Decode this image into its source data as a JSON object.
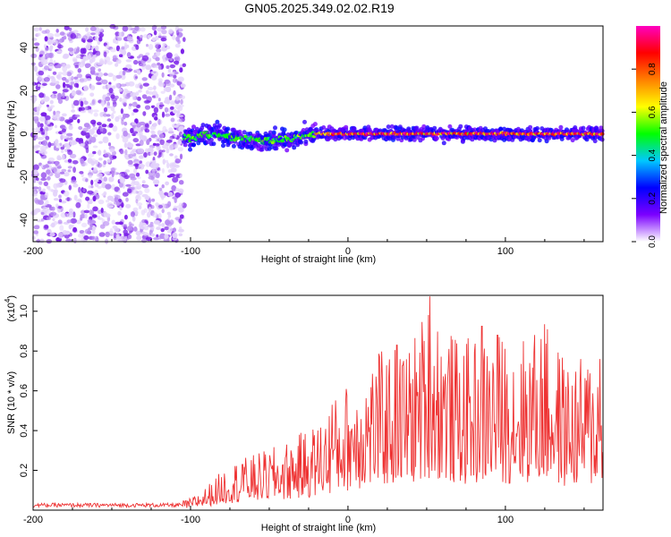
{
  "title": "GN05.2025.349.02.02.R19",
  "chart_data": [
    {
      "type": "heatmap",
      "name": "spectrogram",
      "xlabel": "Height of straight line (km)",
      "ylabel": "Frequency (Hz)",
      "xlim": [
        -200,
        162
      ],
      "ylim": [
        -50,
        50
      ],
      "xticks": [
        -200,
        -100,
        0,
        100
      ],
      "yticks": [
        -40,
        -20,
        0,
        20,
        40
      ],
      "noise_region_x": [
        -200,
        -104
      ],
      "signal_band_x": [
        -104,
        162
      ],
      "signal_center_hz": [
        {
          "x": -104,
          "y": -2
        },
        {
          "x": -95,
          "y": -1
        },
        {
          "x": -85,
          "y": 0
        },
        {
          "x": -70,
          "y": -2
        },
        {
          "x": -55,
          "y": -3
        },
        {
          "x": -45,
          "y": -3
        },
        {
          "x": -35,
          "y": -2
        },
        {
          "x": -20,
          "y": 0
        },
        {
          "x": 0,
          "y": 0
        },
        {
          "x": 50,
          "y": 0
        },
        {
          "x": 100,
          "y": 0
        },
        {
          "x": 162,
          "y": 0
        }
      ],
      "colorbar": {
        "label": "Normalized spectral amplitude",
        "range": [
          0.0,
          1.0
        ],
        "ticks": [
          0.0,
          0.2,
          0.4,
          0.6,
          0.8
        ],
        "tick_labels": [
          "0.0",
          "0.2",
          "0.4",
          "0.6",
          "0.8"
        ],
        "colors_low_to_high": [
          "#ffffff",
          "#7b00ff",
          "#0000ff",
          "#00c8ff",
          "#00ff00",
          "#ffff00",
          "#ff8000",
          "#ff0000",
          "#ff00c0"
        ]
      }
    },
    {
      "type": "line",
      "name": "snr",
      "xlabel": "Height of straight line (km)",
      "ylabel": "SNR (10 * v/v)",
      "scale_label": "(x10",
      "scale_exponent": "4",
      "xlim": [
        -200,
        162
      ],
      "ylim": [
        0,
        10800
      ],
      "xticks": [
        -200,
        -100,
        0,
        100
      ],
      "yticks": [
        2000,
        4000,
        6000,
        8000,
        10000
      ],
      "ytick_labels": [
        "0.2",
        "0.4",
        "0.6",
        "0.8",
        "1.0"
      ],
      "color": "#ee3333",
      "envelope": [
        {
          "x": -200,
          "y": 300
        },
        {
          "x": -110,
          "y": 350
        },
        {
          "x": -100,
          "y": 600
        },
        {
          "x": -90,
          "y": 1200
        },
        {
          "x": -75,
          "y": 2400
        },
        {
          "x": -60,
          "y": 2800
        },
        {
          "x": -40,
          "y": 3400
        },
        {
          "x": -20,
          "y": 4400
        },
        {
          "x": -10,
          "y": 5500
        },
        {
          "x": 0,
          "y": 6500
        },
        {
          "x": 20,
          "y": 8000
        },
        {
          "x": 40,
          "y": 8500
        },
        {
          "x": 52,
          "y": 10800
        },
        {
          "x": 70,
          "y": 8500
        },
        {
          "x": 90,
          "y": 9000
        },
        {
          "x": 110,
          "y": 8800
        },
        {
          "x": 125,
          "y": 9400
        },
        {
          "x": 140,
          "y": 7500
        },
        {
          "x": 162,
          "y": 8000
        }
      ],
      "peaks": [
        {
          "x": 52,
          "y": 10750
        },
        {
          "x": 31,
          "y": 8300
        },
        {
          "x": 85,
          "y": 9250
        },
        {
          "x": 95,
          "y": 8800
        },
        {
          "x": 125,
          "y": 9350
        },
        {
          "x": 118,
          "y": 7900
        },
        {
          "x": 160,
          "y": 7600
        },
        {
          "x": -10,
          "y": 5300
        },
        {
          "x": -67,
          "y": 2300
        }
      ]
    }
  ]
}
